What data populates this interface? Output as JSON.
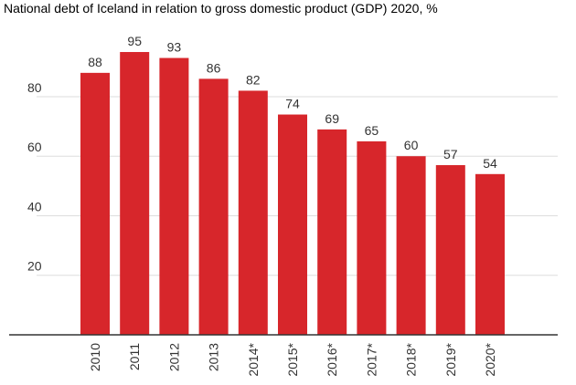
{
  "chart_data": {
    "type": "bar",
    "title": "National debt of Iceland in relation to gross domestic product (GDP) 2020, %",
    "categories": [
      "2010",
      "2011",
      "2012",
      "2013",
      "2014*",
      "2015*",
      "2016*",
      "2017*",
      "2018*",
      "2019*",
      "2020*"
    ],
    "values": [
      88,
      95,
      93,
      86,
      82,
      74,
      69,
      65,
      60,
      57,
      54
    ],
    "yticks": [
      20,
      40,
      60,
      80
    ],
    "ylim": [
      0,
      100
    ],
    "grid": true,
    "bar_color": "#d7262b",
    "grid_color": "#dddddd",
    "axis_color": "#333333"
  }
}
